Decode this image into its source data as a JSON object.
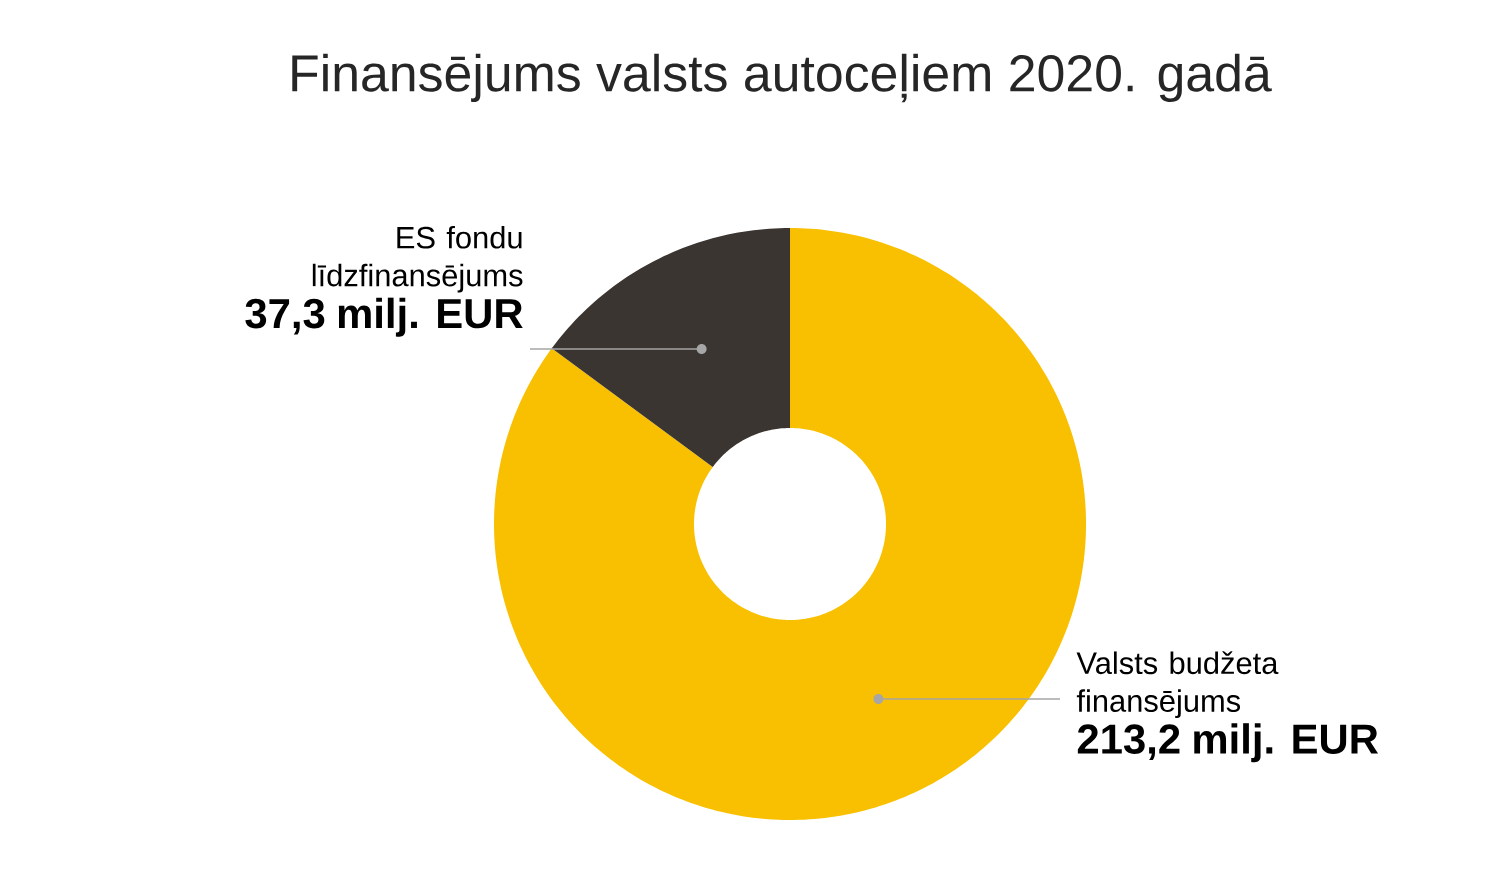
{
  "chart_data": {
    "type": "donut",
    "title": "Finansējums valsts autoceļiem 2020. gadā",
    "categories": [
      "Valsts budžeta finansējums",
      "ES fondu līdzfinansējums"
    ],
    "values": [
      213.2,
      37.3
    ],
    "value_labels": [
      "213,2 milj. EUR",
      "37,3 milj. EUR"
    ],
    "colors": [
      "#f8c000",
      "#3b3532"
    ]
  }
}
